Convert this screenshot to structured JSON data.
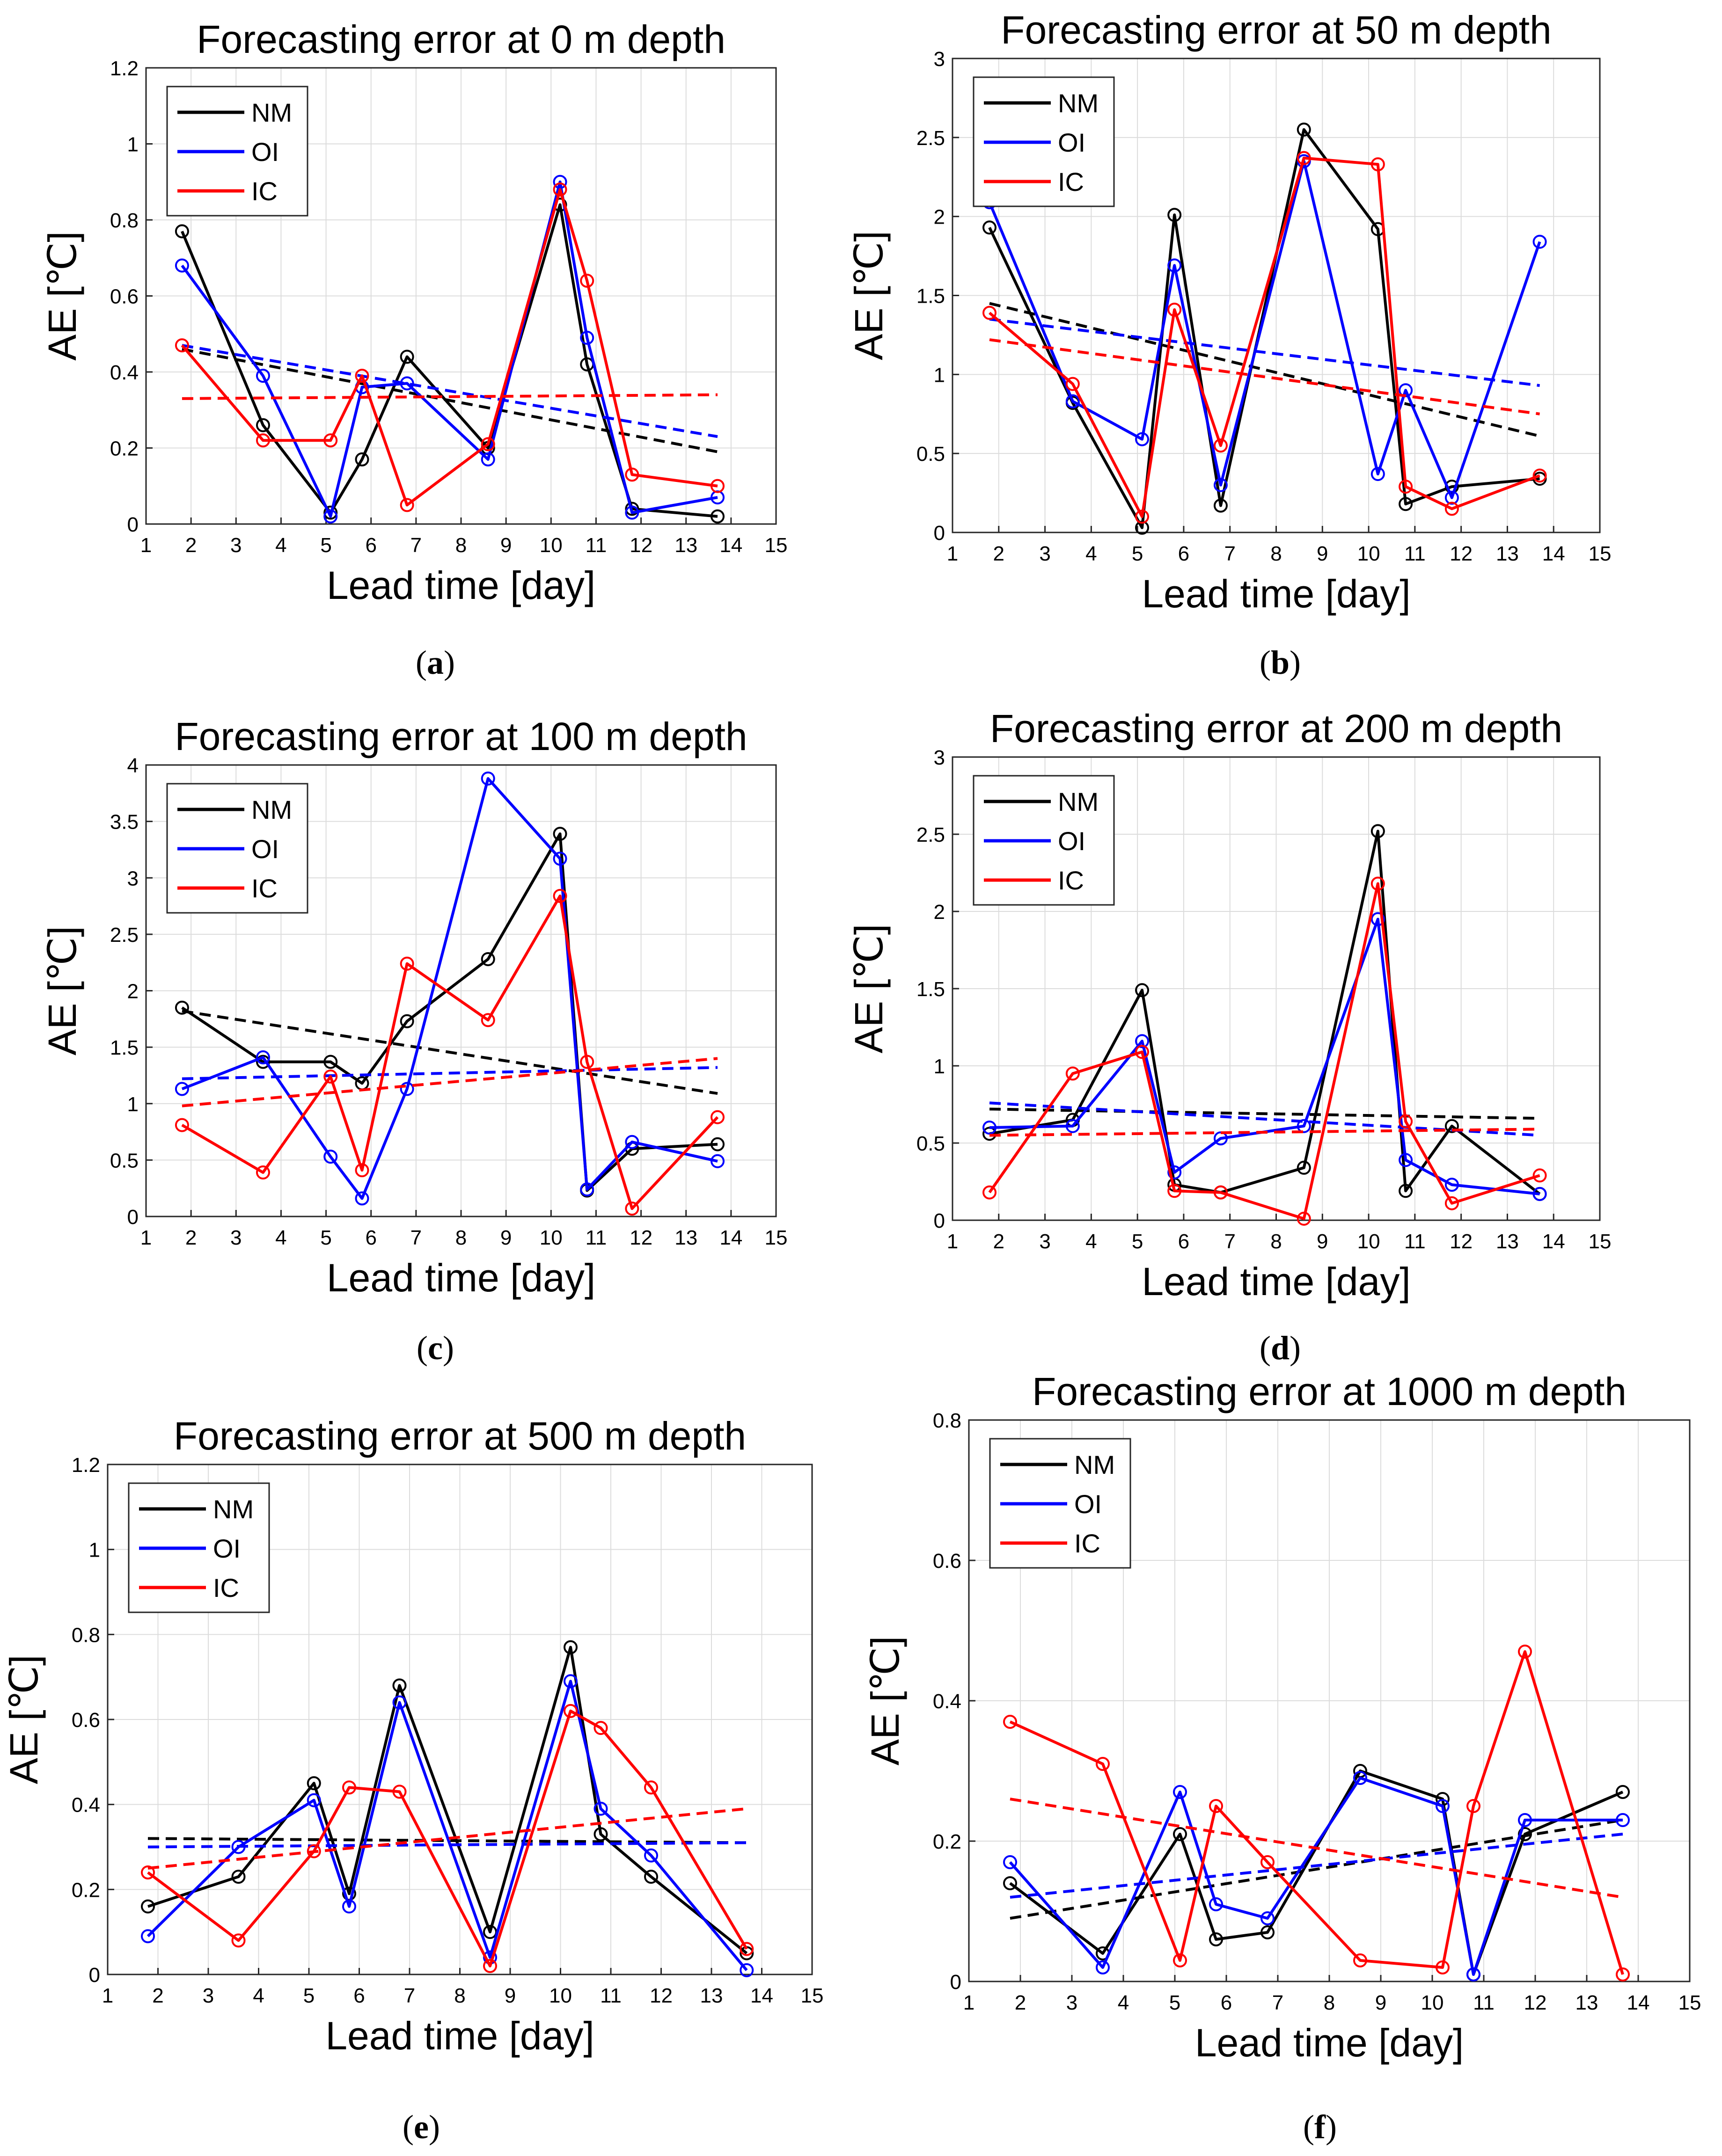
{
  "figure": {
    "colors": {
      "NM": "#000000",
      "OI": "#0000ff",
      "IC": "#ff0000"
    }
  },
  "chart_data": [
    {
      "type": "line",
      "panel": "a",
      "caption": "(a)",
      "title": "Forecasting error at 0 m depth",
      "xlabel": "Lead time [day]",
      "ylabel": "AE [℃]",
      "xlim": [
        1,
        15
      ],
      "ylim": [
        0,
        1.2
      ],
      "xticks": [
        "1",
        "2",
        "3",
        "4",
        "5",
        "6",
        "7",
        "8",
        "9",
        "10",
        "11",
        "12",
        "13",
        "14",
        "15"
      ],
      "yticks": [
        "0",
        "0.2",
        "0.4",
        "0.6",
        "0.8",
        "1",
        "1.2"
      ],
      "grid": true,
      "legend_position": "top-left",
      "series": [
        {
          "name": "NM",
          "x": [
            1.8,
            3.6,
            5.1,
            5.8,
            6.8,
            8.6,
            10.2,
            10.8,
            11.8,
            13.7
          ],
          "values": [
            0.77,
            0.26,
            0.03,
            0.17,
            0.44,
            0.2,
            0.84,
            0.42,
            0.04,
            0.02
          ],
          "trend": [
            0.46,
            0.19
          ]
        },
        {
          "name": "OI",
          "x": [
            1.8,
            3.6,
            5.1,
            5.8,
            6.8,
            8.6,
            10.2,
            10.8,
            11.8,
            13.7
          ],
          "values": [
            0.68,
            0.39,
            0.02,
            0.36,
            0.37,
            0.17,
            0.9,
            0.49,
            0.03,
            0.07
          ],
          "trend": [
            0.47,
            0.23
          ]
        },
        {
          "name": "IC",
          "x": [
            1.8,
            3.6,
            5.1,
            5.8,
            6.8,
            8.6,
            10.2,
            10.8,
            11.8,
            13.7
          ],
          "values": [
            0.47,
            0.22,
            0.22,
            0.39,
            0.05,
            0.21,
            0.88,
            0.64,
            0.13,
            0.1
          ],
          "trend": [
            0.33,
            0.34
          ]
        }
      ]
    },
    {
      "type": "line",
      "panel": "b",
      "caption": "(b)",
      "title": "Forecasting error at 50 m depth",
      "xlabel": "Lead time [day]",
      "ylabel": "AE [℃]",
      "xlim": [
        1,
        15
      ],
      "ylim": [
        0,
        3
      ],
      "xticks": [
        "1",
        "2",
        "3",
        "4",
        "5",
        "6",
        "7",
        "8",
        "9",
        "10",
        "11",
        "12",
        "13",
        "14",
        "15"
      ],
      "yticks": [
        "0",
        "0.5",
        "1",
        "1.5",
        "2",
        "2.5",
        "3"
      ],
      "grid": true,
      "legend_position": "top-left",
      "series": [
        {
          "name": "NM",
          "x": [
            1.8,
            3.6,
            5.1,
            5.8,
            6.8,
            8.6,
            10.2,
            10.8,
            11.8,
            13.7
          ],
          "values": [
            1.93,
            0.82,
            0.03,
            2.01,
            0.17,
            2.55,
            1.92,
            0.18,
            0.29,
            0.34
          ],
          "trend": [
            1.45,
            0.61
          ]
        },
        {
          "name": "OI",
          "x": [
            1.8,
            3.6,
            5.1,
            5.8,
            6.8,
            8.6,
            10.2,
            10.8,
            11.8,
            13.7
          ],
          "values": [
            2.09,
            0.83,
            0.59,
            1.69,
            0.3,
            2.35,
            0.37,
            0.9,
            0.22,
            1.84
          ],
          "trend": [
            1.35,
            0.93
          ]
        },
        {
          "name": "IC",
          "x": [
            1.8,
            3.6,
            5.1,
            5.8,
            6.8,
            8.6,
            10.2,
            10.8,
            11.8,
            13.7
          ],
          "values": [
            1.39,
            0.94,
            0.1,
            1.41,
            0.55,
            2.37,
            2.33,
            0.29,
            0.15,
            0.36
          ],
          "trend": [
            1.22,
            0.75
          ]
        }
      ]
    },
    {
      "type": "line",
      "panel": "c",
      "caption": "(c)",
      "title": "Forecasting error at 100 m depth",
      "xlabel": "Lead time [day]",
      "ylabel": "AE [℃]",
      "xlim": [
        1,
        15
      ],
      "ylim": [
        0,
        4
      ],
      "xticks": [
        "1",
        "2",
        "3",
        "4",
        "5",
        "6",
        "7",
        "8",
        "9",
        "10",
        "11",
        "12",
        "13",
        "14",
        "15"
      ],
      "yticks": [
        "0",
        "0.5",
        "1",
        "1.5",
        "2",
        "2.5",
        "3",
        "3.5",
        "4"
      ],
      "grid": true,
      "legend_position": "top-left",
      "series": [
        {
          "name": "NM",
          "x": [
            1.8,
            3.6,
            5.1,
            5.8,
            6.8,
            8.6,
            10.2,
            10.8,
            11.8,
            13.7
          ],
          "values": [
            1.85,
            1.37,
            1.37,
            1.18,
            1.73,
            2.28,
            3.39,
            0.23,
            0.6,
            0.64
          ],
          "trend": [
            1.82,
            1.09
          ]
        },
        {
          "name": "OI",
          "x": [
            1.8,
            3.6,
            5.1,
            5.8,
            6.8,
            8.6,
            10.2,
            10.8,
            11.8,
            13.7
          ],
          "values": [
            1.13,
            1.41,
            0.53,
            0.16,
            1.13,
            3.88,
            3.17,
            0.24,
            0.66,
            0.49
          ],
          "trend": [
            1.22,
            1.32
          ]
        },
        {
          "name": "IC",
          "x": [
            1.8,
            3.6,
            5.1,
            5.8,
            6.8,
            8.6,
            10.2,
            10.8,
            11.8,
            13.7
          ],
          "values": [
            0.81,
            0.39,
            1.24,
            0.41,
            2.24,
            1.74,
            2.84,
            1.37,
            0.07,
            0.88
          ],
          "trend": [
            0.98,
            1.4
          ]
        }
      ]
    },
    {
      "type": "line",
      "panel": "d",
      "caption": "(d)",
      "title": "Forecasting error at 200 m depth",
      "xlabel": "Lead time [day]",
      "ylabel": "AE [℃]",
      "xlim": [
        1,
        15
      ],
      "ylim": [
        0,
        3
      ],
      "xticks": [
        "1",
        "2",
        "3",
        "4",
        "5",
        "6",
        "7",
        "8",
        "9",
        "10",
        "11",
        "12",
        "13",
        "14",
        "15"
      ],
      "yticks": [
        "0",
        "0.5",
        "1",
        "1.5",
        "2",
        "2.5",
        "3"
      ],
      "grid": true,
      "legend_position": "top-left",
      "series": [
        {
          "name": "NM",
          "x": [
            1.8,
            3.6,
            5.1,
            5.8,
            6.8,
            8.6,
            10.2,
            10.8,
            11.8,
            13.7
          ],
          "values": [
            0.56,
            0.65,
            1.49,
            0.23,
            0.18,
            0.34,
            2.52,
            0.19,
            0.61,
            0.17
          ],
          "trend": [
            0.72,
            0.66
          ]
        },
        {
          "name": "OI",
          "x": [
            1.8,
            3.6,
            5.1,
            5.8,
            6.8,
            8.6,
            10.2,
            10.8,
            11.8,
            13.7
          ],
          "values": [
            0.6,
            0.61,
            1.16,
            0.31,
            0.53,
            0.61,
            1.95,
            0.39,
            0.23,
            0.17
          ],
          "trend": [
            0.76,
            0.55
          ]
        },
        {
          "name": "IC",
          "x": [
            1.8,
            3.6,
            5.1,
            5.8,
            6.8,
            8.6,
            10.2,
            10.8,
            11.8,
            13.7
          ],
          "values": [
            0.18,
            0.95,
            1.09,
            0.19,
            0.18,
            0.01,
            2.18,
            0.64,
            0.11,
            0.29
          ],
          "trend": [
            0.55,
            0.59
          ]
        }
      ]
    },
    {
      "type": "line",
      "panel": "e",
      "caption": "(e)",
      "title": "Forecasting error at 500 m depth",
      "xlabel": "Lead time [day]",
      "ylabel": "AE [℃]",
      "xlim": [
        1,
        15
      ],
      "ylim": [
        0,
        1.2
      ],
      "xticks": [
        "1",
        "2",
        "3",
        "4",
        "5",
        "6",
        "7",
        "8",
        "9",
        "10",
        "11",
        "12",
        "13",
        "14",
        "15"
      ],
      "yticks": [
        "0",
        "0.2",
        "0.4",
        "0.6",
        "0.8",
        "1",
        "1.2"
      ],
      "grid": true,
      "legend_position": "top-left",
      "series": [
        {
          "name": "NM",
          "x": [
            1.8,
            3.6,
            5.1,
            5.8,
            6.8,
            8.6,
            10.2,
            10.8,
            11.8,
            13.7
          ],
          "values": [
            0.16,
            0.23,
            0.45,
            0.19,
            0.68,
            0.1,
            0.77,
            0.33,
            0.23,
            0.05
          ],
          "trend": [
            0.32,
            0.31
          ]
        },
        {
          "name": "OI",
          "x": [
            1.8,
            3.6,
            5.1,
            5.8,
            6.8,
            8.6,
            10.2,
            10.8,
            11.8,
            13.7
          ],
          "values": [
            0.09,
            0.3,
            0.41,
            0.16,
            0.64,
            0.04,
            0.69,
            0.39,
            0.28,
            0.01
          ],
          "trend": [
            0.3,
            0.31
          ]
        },
        {
          "name": "IC",
          "x": [
            1.8,
            3.6,
            5.1,
            5.8,
            6.8,
            8.6,
            10.2,
            10.8,
            11.8,
            13.7
          ],
          "values": [
            0.24,
            0.08,
            0.29,
            0.44,
            0.43,
            0.02,
            0.62,
            0.58,
            0.44,
            0.06
          ],
          "trend": [
            0.25,
            0.39
          ]
        }
      ]
    },
    {
      "type": "line",
      "panel": "f",
      "caption": "(f)",
      "title": "Forecasting error at 1000 m depth",
      "xlabel": "Lead time [day]",
      "ylabel": "AE [℃]",
      "xlim": [
        1,
        15
      ],
      "ylim": [
        0,
        0.8
      ],
      "xticks": [
        "1",
        "2",
        "3",
        "4",
        "5",
        "6",
        "7",
        "8",
        "9",
        "10",
        "11",
        "12",
        "13",
        "14",
        "15"
      ],
      "yticks": [
        "0",
        "0.2",
        "0.4",
        "0.6",
        "0.8"
      ],
      "grid": true,
      "legend_position": "top-left",
      "series": [
        {
          "name": "NM",
          "x": [
            1.8,
            3.6,
            5.1,
            5.8,
            6.8,
            8.6,
            10.2,
            10.8,
            11.8,
            13.7
          ],
          "values": [
            0.14,
            0.04,
            0.21,
            0.06,
            0.07,
            0.3,
            0.26,
            0.01,
            0.21,
            0.27
          ],
          "trend": [
            0.09,
            0.23
          ]
        },
        {
          "name": "OI",
          "x": [
            1.8,
            3.6,
            5.1,
            5.8,
            6.8,
            8.6,
            10.2,
            10.8,
            11.8,
            13.7
          ],
          "values": [
            0.17,
            0.02,
            0.27,
            0.11,
            0.09,
            0.29,
            0.25,
            0.01,
            0.23,
            0.23
          ],
          "trend": [
            0.12,
            0.21
          ]
        },
        {
          "name": "IC",
          "x": [
            1.8,
            3.6,
            5.1,
            5.8,
            6.8,
            8.6,
            10.2,
            10.8,
            11.8,
            13.7
          ],
          "values": [
            0.37,
            0.31,
            0.03,
            0.25,
            0.17,
            0.03,
            0.02,
            0.25,
            0.47,
            0.01
          ],
          "trend": [
            0.26,
            0.12
          ]
        }
      ]
    }
  ]
}
